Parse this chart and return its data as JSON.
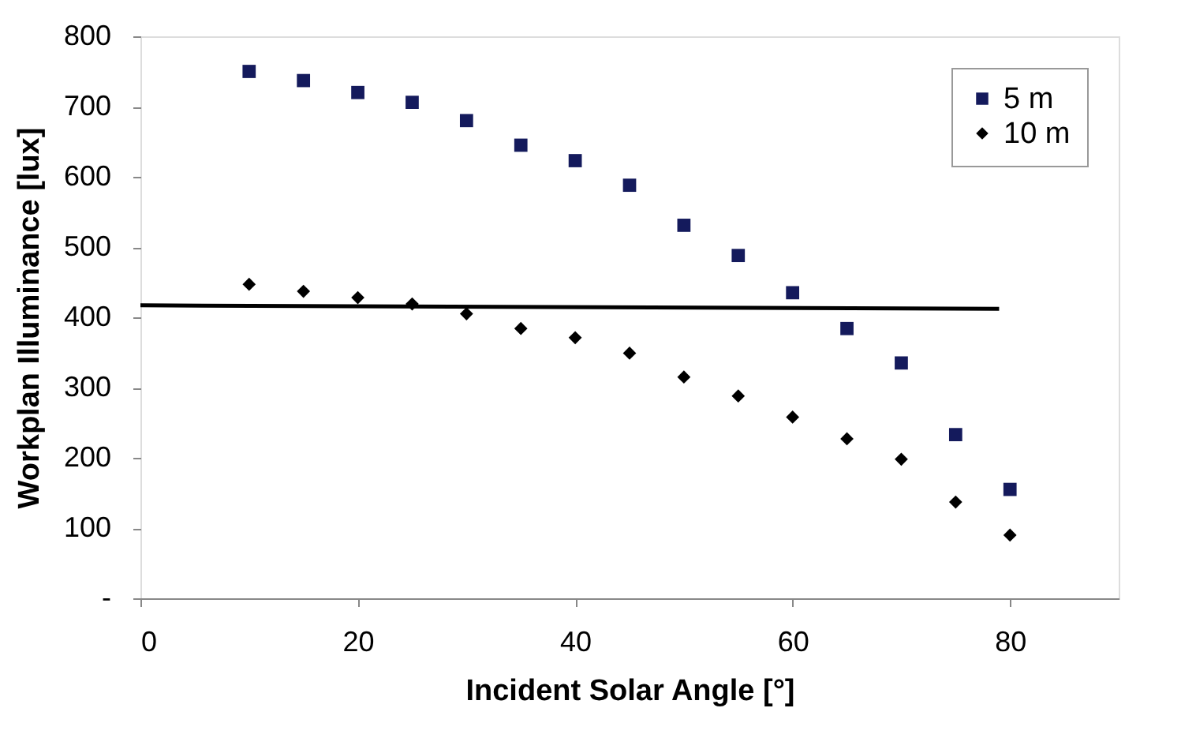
{
  "chart_data": {
    "type": "scatter",
    "xlabel": "Incident Solar Angle [°]",
    "ylabel": "Workplan Illuminance [lux]",
    "x": [
      10,
      15,
      20,
      25,
      30,
      35,
      40,
      45,
      50,
      55,
      60,
      65,
      70,
      75,
      80
    ],
    "series": [
      {
        "name": "5 m",
        "color": "#141a5c",
        "marker": "square",
        "values": [
          750,
          737,
          720,
          706,
          680,
          645,
          623,
          588,
          531,
          488,
          435,
          384,
          335,
          233,
          155
        ]
      },
      {
        "name": "10 m",
        "color": "#000000",
        "marker": "diamond",
        "values": [
          447,
          437,
          428,
          419,
          405,
          384,
          371,
          349,
          315,
          288,
          258,
          227,
          198,
          137,
          90
        ]
      },
      {
        "type": "line",
        "color": "#000000",
        "x": [
          0,
          79
        ],
        "values": [
          417,
          412
        ]
      }
    ],
    "xlim": [
      0,
      90
    ],
    "xticks": [
      0,
      20,
      40,
      60,
      80
    ],
    "ylim": [
      0,
      800
    ],
    "yticks": [
      {
        "value": 0,
        "label": "-"
      },
      100,
      200,
      300,
      400,
      500,
      600,
      700,
      800
    ],
    "grid": false,
    "legend": "top right"
  }
}
